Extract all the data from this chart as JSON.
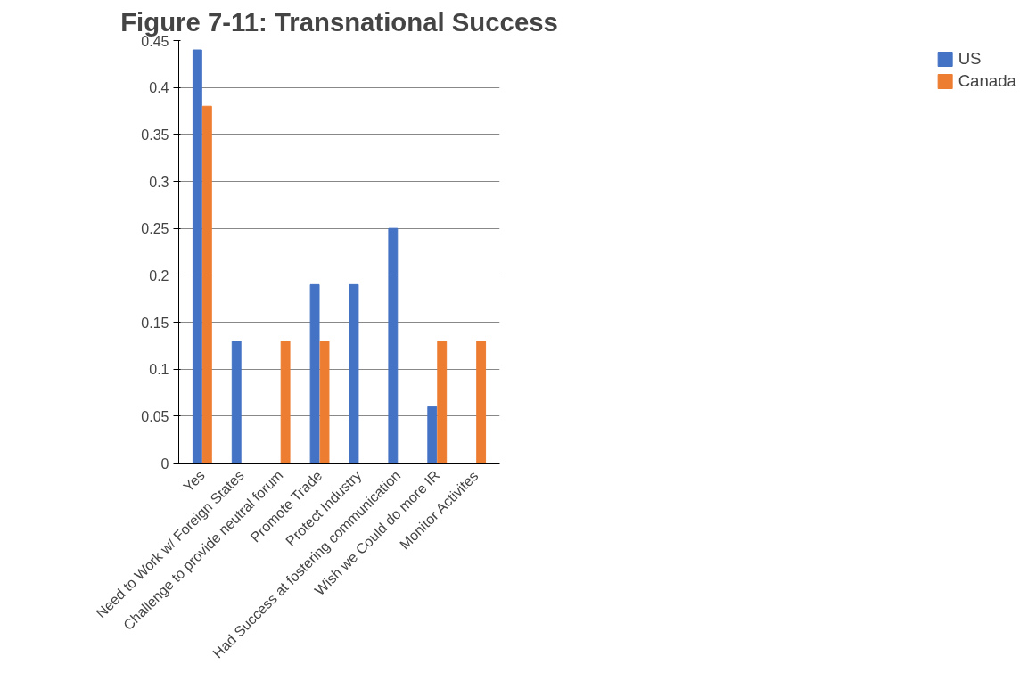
{
  "chart_data": {
    "type": "bar",
    "title": "Figure 7-11: Transnational Success",
    "categories": [
      "Yes",
      "Need to Work w/ Foreign States",
      "Challenge to provide neutral forum",
      "Promote Trade",
      "Protect Industry",
      "Had Success at fostering communication",
      "Wish we Could do more IR",
      "Monitor Activites"
    ],
    "series": [
      {
        "name": "US",
        "color": "#4472c4",
        "values": [
          0.44,
          0.13,
          0,
          0.19,
          0.19,
          0.25,
          0.06,
          0
        ]
      },
      {
        "name": "Canada",
        "color": "#ed7d31",
        "values": [
          0.38,
          0,
          0.13,
          0.13,
          0,
          0,
          0.13,
          0.13
        ]
      }
    ],
    "ylim": [
      0,
      0.45
    ],
    "yticks": [
      0,
      0.05,
      0.1,
      0.15,
      0.2,
      0.25,
      0.3,
      0.35,
      0.4,
      0.45
    ],
    "grid": "y",
    "legend": "right"
  }
}
